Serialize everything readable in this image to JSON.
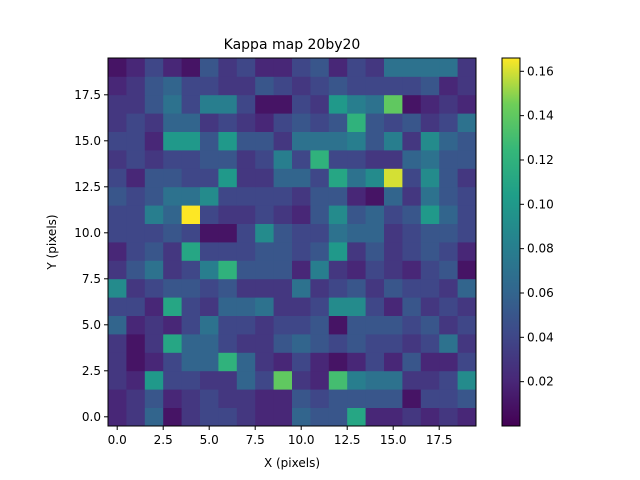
{
  "chart_data": {
    "type": "heatmap",
    "title": "Kappa map 20by20",
    "xlabel": "X (pixels)",
    "ylabel": "Y (pixels)",
    "xlim": [
      -0.5,
      19.5
    ],
    "ylim": [
      -0.5,
      19.5
    ],
    "x_ticks": [
      "0.0",
      "2.5",
      "5.0",
      "7.5",
      "10.0",
      "12.5",
      "15.0",
      "17.5"
    ],
    "y_ticks": [
      "0.0",
      "2.5",
      "5.0",
      "7.5",
      "10.0",
      "12.5",
      "15.0",
      "17.5"
    ],
    "colorbar": {
      "colormap": "viridis",
      "min": 0.0,
      "max": 0.166,
      "ticks": [
        "0.02",
        "0.04",
        "0.06",
        "0.08",
        "0.10",
        "0.12",
        "0.14",
        "0.16"
      ]
    },
    "grid": false,
    "rows_bottom_to_top": [
      [
        0.02,
        0.03,
        0.06,
        0.01,
        0.03,
        0.04,
        0.04,
        0.03,
        0.02,
        0.02,
        0.06,
        0.05,
        0.05,
        0.11,
        0.02,
        0.02,
        0.03,
        0.02,
        0.03,
        0.02
      ],
      [
        0.02,
        0.03,
        0.05,
        0.02,
        0.03,
        0.04,
        0.03,
        0.03,
        0.02,
        0.02,
        0.05,
        0.04,
        0.05,
        0.05,
        0.05,
        0.05,
        0.01,
        0.04,
        0.04,
        0.05
      ],
      [
        0.03,
        0.02,
        0.1,
        0.04,
        0.04,
        0.03,
        0.03,
        0.06,
        0.04,
        0.14,
        0.03,
        0.02,
        0.13,
        0.08,
        0.07,
        0.07,
        0.03,
        0.03,
        0.04,
        0.09
      ],
      [
        0.03,
        0.01,
        0.02,
        0.04,
        0.06,
        0.06,
        0.12,
        0.06,
        0.03,
        0.02,
        0.04,
        0.02,
        0.01,
        0.02,
        0.04,
        0.02,
        0.05,
        0.02,
        0.02,
        0.04
      ],
      [
        0.03,
        0.01,
        0.03,
        0.11,
        0.06,
        0.06,
        0.04,
        0.03,
        0.03,
        0.05,
        0.06,
        0.05,
        0.04,
        0.05,
        0.04,
        0.04,
        0.03,
        0.04,
        0.07,
        0.03
      ],
      [
        0.06,
        0.02,
        0.03,
        0.02,
        0.04,
        0.07,
        0.04,
        0.04,
        0.03,
        0.04,
        0.04,
        0.05,
        0.01,
        0.05,
        0.05,
        0.05,
        0.04,
        0.05,
        0.03,
        0.04
      ],
      [
        0.04,
        0.04,
        0.02,
        0.11,
        0.04,
        0.03,
        0.06,
        0.06,
        0.07,
        0.03,
        0.03,
        0.04,
        0.09,
        0.09,
        0.04,
        0.02,
        0.05,
        0.03,
        0.04,
        0.03
      ],
      [
        0.09,
        0.03,
        0.04,
        0.05,
        0.05,
        0.04,
        0.05,
        0.03,
        0.03,
        0.03,
        0.07,
        0.03,
        0.04,
        0.05,
        0.03,
        0.05,
        0.04,
        0.04,
        0.03,
        0.06
      ],
      [
        0.03,
        0.05,
        0.07,
        0.03,
        0.04,
        0.08,
        0.12,
        0.05,
        0.05,
        0.05,
        0.02,
        0.08,
        0.03,
        0.02,
        0.04,
        0.03,
        0.02,
        0.04,
        0.05,
        0.01
      ],
      [
        0.02,
        0.04,
        0.05,
        0.03,
        0.11,
        0.04,
        0.04,
        0.04,
        0.05,
        0.05,
        0.04,
        0.05,
        0.1,
        0.03,
        0.05,
        0.03,
        0.04,
        0.05,
        0.04,
        0.02
      ],
      [
        0.04,
        0.04,
        0.04,
        0.05,
        0.04,
        0.01,
        0.01,
        0.04,
        0.09,
        0.05,
        0.04,
        0.04,
        0.07,
        0.06,
        0.06,
        0.03,
        0.04,
        0.05,
        0.05,
        0.04
      ],
      [
        0.04,
        0.04,
        0.08,
        0.06,
        0.166,
        0.04,
        0.03,
        0.03,
        0.04,
        0.03,
        0.02,
        0.05,
        0.09,
        0.05,
        0.06,
        0.04,
        0.05,
        0.1,
        0.06,
        0.04
      ],
      [
        0.05,
        0.04,
        0.05,
        0.07,
        0.07,
        0.09,
        0.04,
        0.04,
        0.04,
        0.04,
        0.03,
        0.05,
        0.05,
        0.02,
        0.01,
        0.06,
        0.03,
        0.07,
        0.05,
        0.04
      ],
      [
        0.04,
        0.02,
        0.05,
        0.05,
        0.04,
        0.04,
        0.1,
        0.03,
        0.03,
        0.06,
        0.06,
        0.04,
        0.11,
        0.07,
        0.09,
        0.16,
        0.04,
        0.09,
        0.05,
        0.03
      ],
      [
        0.03,
        0.04,
        0.03,
        0.04,
        0.04,
        0.05,
        0.05,
        0.03,
        0.04,
        0.08,
        0.04,
        0.12,
        0.04,
        0.04,
        0.03,
        0.03,
        0.06,
        0.07,
        0.05,
        0.05
      ],
      [
        0.04,
        0.04,
        0.02,
        0.1,
        0.1,
        0.05,
        0.1,
        0.05,
        0.05,
        0.03,
        0.07,
        0.07,
        0.07,
        0.08,
        0.05,
        0.08,
        0.03,
        0.09,
        0.06,
        0.05
      ],
      [
        0.03,
        0.04,
        0.03,
        0.06,
        0.06,
        0.03,
        0.04,
        0.03,
        0.02,
        0.04,
        0.05,
        0.04,
        0.05,
        0.12,
        0.05,
        0.04,
        0.05,
        0.03,
        0.04,
        0.07
      ],
      [
        0.03,
        0.03,
        0.05,
        0.07,
        0.04,
        0.08,
        0.08,
        0.04,
        0.01,
        0.01,
        0.04,
        0.03,
        0.1,
        0.08,
        0.07,
        0.14,
        0.01,
        0.02,
        0.03,
        0.02
      ],
      [
        0.02,
        0.03,
        0.05,
        0.06,
        0.04,
        0.04,
        0.03,
        0.03,
        0.05,
        0.04,
        0.03,
        0.04,
        0.05,
        0.04,
        0.04,
        0.04,
        0.04,
        0.05,
        0.02,
        0.03
      ],
      [
        0.01,
        0.02,
        0.04,
        0.02,
        0.01,
        0.05,
        0.03,
        0.04,
        0.02,
        0.02,
        0.04,
        0.05,
        0.02,
        0.04,
        0.03,
        0.07,
        0.07,
        0.07,
        0.07,
        0.03
      ]
    ]
  }
}
